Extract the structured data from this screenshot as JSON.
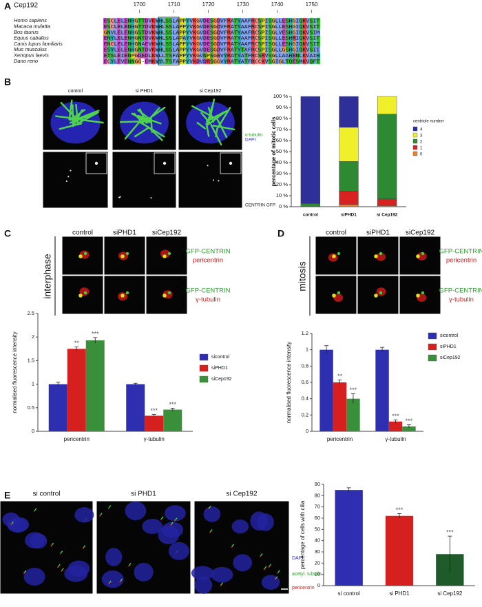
{
  "figure": {
    "panels": [
      "A",
      "B",
      "C",
      "D",
      "E"
    ]
  },
  "alignment": {
    "title": "Cep192",
    "positions": [
      1700,
      1710,
      1720,
      1730,
      1740,
      1750
    ],
    "rows": [
      {
        "species": "Homo sapiens",
        "sequence": "ESCLELENHGTTDVKWHLSSLAPPYVKGVDESGDVFRATYAAFRCSPISGLLESHGIQKVSIT"
      },
      {
        "species": "Macaca mulatta",
        "sequence": "ESCLELENHGTTDVKWHLSSLAPPYVKGVDESGDVFRATYAAFRCSPISGLLESHGIQKVSIT"
      },
      {
        "species": "Bos taurus",
        "sequence": "GNVLELENHGSTDVKWHLSSLAPPYVKGVDESGDVFRATYAAFRCSPISGLVESHGIQKVSIM"
      },
      {
        "species": "Equus caballus",
        "sequence": "ENYLELENHGNTDVKWHLSSLAPAYVKGVDESGDVFRATYAAFRCSPISGLLESHRIQKVSIT"
      },
      {
        "species": "Canis lupus familiaris",
        "sequence": "ENCLELENHGNAEVKWHLSSLAPPYVKGVDESGDVFRATYAAFRCSPISGLLESHGIQKVSIT"
      },
      {
        "species": "Mus musculus",
        "sequence": "ESYLELENHGNTDVKWHLSSLAPPYVKGVDESGDVFRATYTAFRCSPISGLLGSHGIQKVSII"
      },
      {
        "species": "Xenopus laevis",
        "sequence": "ETSLEIENPGDEDLKWLLTSFAPPYVKGVNPSGEVYRATYATFRCSRVSGLLAAHENLKVAIH"
      },
      {
        "species": "Dano rerio",
        "sequence": "ECYLEVENNGG-EMKWYLTSFAPPYVKDVDRSGGVYRATYATFRCCKVSGIGLTQESMKVQFT"
      }
    ]
  },
  "panel_b": {
    "columns": [
      "control",
      "si PHD1",
      "si Cep192"
    ],
    "stains": [
      "α-tubulin",
      "DAPI"
    ],
    "bottom_label": "CENTRIN GFP"
  },
  "panel_c": {
    "condition": "interphase",
    "columns": [
      "control",
      "siPHD1",
      "siCep192"
    ],
    "rows": [
      [
        "GFP-CENTRIN",
        "pericentrin"
      ],
      [
        "GFP-CENTRIN",
        "γ-tubulin"
      ]
    ]
  },
  "panel_d": {
    "condition": "mitosis",
    "columns": [
      "control",
      "siPHD1",
      "siCep192"
    ],
    "rows": [
      [
        "GFP-CENTRIN",
        "pericentrin"
      ],
      [
        "GFP-CENTRIN",
        "γ-tubulin"
      ]
    ]
  },
  "panel_e": {
    "columns": [
      "si control",
      "si PHD1",
      "si Cep192"
    ],
    "stains": [
      "DAPI",
      "acetyl. tubulin",
      "pericentrin"
    ]
  },
  "chart_data": [
    {
      "type": "stacked_bar",
      "y_label": "percentage of mitotic cells",
      "legend_title": "centriole number",
      "categories": [
        "control",
        "siPHD1",
        "si Cep192"
      ],
      "series": [
        {
          "name": "4",
          "color": "#2f2f9a",
          "values": [
            97,
            28,
            0
          ]
        },
        {
          "name": "3",
          "color": "#f0f02a",
          "values": [
            0,
            31,
            16
          ]
        },
        {
          "name": "2",
          "color": "#2e8a32",
          "values": [
            3,
            27,
            77
          ]
        },
        {
          "name": "1",
          "color": "#d82222",
          "values": [
            0,
            12,
            6
          ]
        },
        {
          "name": "0",
          "color": "#e8842a",
          "values": [
            0,
            2,
            1
          ]
        }
      ],
      "ylim": [
        0,
        100
      ],
      "yticks": [
        {
          "value": 0,
          "label": "0 %"
        },
        {
          "value": 10,
          "label": "10 %"
        },
        {
          "value": 20,
          "label": "20 %"
        },
        {
          "value": 30,
          "label": "30 %"
        },
        {
          "value": 40,
          "label": "40 %"
        },
        {
          "value": 50,
          "label": "50 %"
        },
        {
          "value": 60,
          "label": "60 %"
        },
        {
          "value": 70,
          "label": "70 %"
        },
        {
          "value": 80,
          "label": "80 %"
        },
        {
          "value": 90,
          "label": "90 %"
        },
        {
          "value": 100,
          "label": "100 %"
        }
      ]
    },
    {
      "type": "grouped_bar",
      "y_label": "normalised fluorescence intensity",
      "categories": [
        "pericentrin",
        "γ-tubulin"
      ],
      "series": [
        {
          "name": "sicontrol",
          "color": "#2e2eb0",
          "values": [
            1,
            1
          ],
          "errors": [
            0.04,
            0.02
          ],
          "significance": [
            null,
            null
          ]
        },
        {
          "name": "siPHD1",
          "color": "#d62020",
          "values": [
            1.75,
            0.33
          ],
          "errors": [
            0.04,
            0.03
          ],
          "significance": [
            "**",
            "***"
          ]
        },
        {
          "name": "siCep192",
          "color": "#3a8f3a",
          "values": [
            1.93,
            0.46
          ],
          "errors": [
            0.06,
            0.03
          ],
          "significance": [
            "***",
            "***"
          ]
        }
      ],
      "ylim": [
        0,
        2.5
      ],
      "yticks": [
        0,
        0.5,
        1,
        1.5,
        2,
        2.5
      ]
    },
    {
      "type": "grouped_bar",
      "y_label": "normalised fluorescence intensity",
      "categories": [
        "pericentrin",
        "γ-tubulin"
      ],
      "series": [
        {
          "name": "sicontrol",
          "color": "#2e2eb0",
          "values": [
            1,
            1
          ],
          "errors": [
            0.05,
            0.03
          ],
          "significance": [
            null,
            null
          ]
        },
        {
          "name": "siPHD1",
          "color": "#d62020",
          "values": [
            0.6,
            0.12
          ],
          "errors": [
            0.03,
            0.02
          ],
          "significance": [
            "**",
            "***"
          ]
        },
        {
          "name": "siCep192",
          "color": "#3a8f3a",
          "values": [
            0.4,
            0.06
          ],
          "errors": [
            0.06,
            0.02
          ],
          "significance": [
            "***",
            "***"
          ]
        }
      ],
      "ylim": [
        0,
        1.2
      ],
      "yticks": [
        0,
        0.2,
        0.4,
        0.6,
        0.8,
        1,
        1.2
      ]
    },
    {
      "type": "bar",
      "y_label": "percentage of cells with cilia",
      "categories": [
        "si control",
        "si PHD1",
        "si Cep192"
      ],
      "values": [
        85,
        62,
        28
      ],
      "errors": [
        2,
        2,
        16
      ],
      "colors": [
        "#2e2eb0",
        "#d62020",
        "#1e5a2a"
      ],
      "significance": [
        null,
        "***",
        "***"
      ],
      "ylim": [
        0,
        90
      ],
      "yticks": [
        0,
        10,
        20,
        30,
        40,
        50,
        60,
        70,
        80,
        90
      ]
    }
  ]
}
